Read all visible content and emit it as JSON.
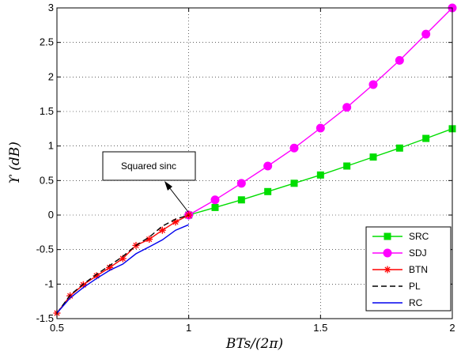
{
  "chart_data": {
    "type": "line",
    "xlabel": "BTs/(2π)",
    "ylabel": "ϒ (dB)",
    "xlim": [
      0.5,
      2
    ],
    "ylim": [
      -1.5,
      3
    ],
    "xticks": [
      "0.5",
      "1",
      "1.5",
      "2"
    ],
    "yticks": [
      "-1.5",
      "-1",
      "-0.5",
      "0",
      "0.5",
      "1",
      "1.5",
      "2",
      "2.5",
      "3"
    ],
    "grid": true,
    "legend_position": "bottom-right",
    "annotation": "Squared sinc",
    "series": [
      {
        "name": "SRC",
        "color": "#00dd00",
        "marker": "square",
        "linestyle": "solid",
        "x": [
          1.0,
          1.1,
          1.2,
          1.3,
          1.4,
          1.5,
          1.6,
          1.7,
          1.8,
          1.9,
          2.0
        ],
        "y": [
          0.0,
          0.11,
          0.22,
          0.34,
          0.46,
          0.58,
          0.71,
          0.84,
          0.97,
          1.11,
          1.25
        ]
      },
      {
        "name": "SDJ",
        "color": "#ff00ff",
        "marker": "circle",
        "linestyle": "solid",
        "x": [
          1.0,
          1.1,
          1.2,
          1.3,
          1.4,
          1.5,
          1.6,
          1.7,
          1.8,
          1.9,
          2.0
        ],
        "y": [
          0.0,
          0.22,
          0.46,
          0.71,
          0.97,
          1.26,
          1.56,
          1.89,
          2.24,
          2.62,
          3.0
        ]
      },
      {
        "name": "BTN",
        "color": "#ff0000",
        "marker": "star",
        "linestyle": "solid",
        "x": [
          0.5,
          0.55,
          0.6,
          0.65,
          0.7,
          0.75,
          0.8,
          0.85,
          0.9,
          0.95,
          1.0
        ],
        "y": [
          -1.42,
          -1.17,
          -1.01,
          -0.88,
          -0.76,
          -0.63,
          -0.44,
          -0.35,
          -0.22,
          -0.1,
          0.0
        ]
      },
      {
        "name": "PL",
        "color": "#000000",
        "marker": "none",
        "linestyle": "dashed",
        "x": [
          0.5,
          0.55,
          0.6,
          0.65,
          0.7,
          0.75,
          0.8,
          0.85,
          0.9,
          0.95,
          1.0
        ],
        "y": [
          -1.42,
          -1.16,
          -1.0,
          -0.86,
          -0.73,
          -0.6,
          -0.44,
          -0.32,
          -0.16,
          -0.06,
          0.0
        ]
      },
      {
        "name": "RC",
        "color": "#0000ee",
        "marker": "none",
        "linestyle": "solid",
        "x": [
          0.5,
          0.55,
          0.6,
          0.65,
          0.7,
          0.75,
          0.8,
          0.85,
          0.9,
          0.95,
          1.0
        ],
        "y": [
          -1.42,
          -1.2,
          -1.05,
          -0.92,
          -0.8,
          -0.71,
          -0.56,
          -0.46,
          -0.36,
          -0.22,
          -0.14
        ]
      }
    ]
  }
}
